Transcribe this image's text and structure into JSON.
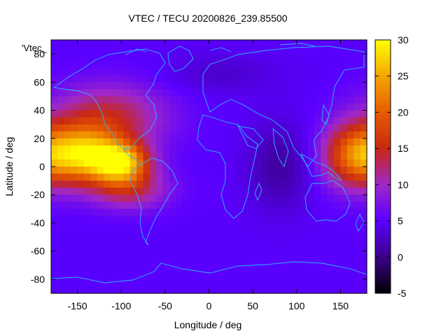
{
  "title": "VTEC / TECU 20200826_239.85500",
  "xlabel": "Longitude / deg",
  "ylabel": "Latitude / deg",
  "series_label": "'Vtec_",
  "colors": {
    "coastline": "#2ab6ff",
    "background": "#ffffff",
    "text": "#000000"
  },
  "chart_data": {
    "type": "heatmap",
    "title": "VTEC / TECU 20200826_239.85500",
    "xlabel": "Longitude / deg",
    "ylabel": "Latitude / deg",
    "xlim": [
      -180,
      180
    ],
    "ylim": [
      -90,
      90
    ],
    "x_ticks": [
      -150,
      -100,
      -50,
      0,
      50,
      100,
      150
    ],
    "y_ticks": [
      -80,
      -60,
      -40,
      -20,
      0,
      20,
      40,
      60,
      80
    ],
    "colorbar": {
      "range": [
        -5,
        30
      ],
      "ticks": [
        -5,
        0,
        5,
        10,
        15,
        20,
        25,
        30
      ],
      "palette": "black-purple-red-orange-yellow"
    },
    "features": [
      {
        "lon": -145,
        "lat": 8,
        "vtec": 20,
        "sx": 30,
        "sy": 14
      },
      {
        "lon": -100,
        "lat": 3,
        "vtec": 20,
        "sx": 22,
        "sy": 10
      },
      {
        "lon": -90,
        "lat": -16,
        "vtec": 8,
        "sx": 30,
        "sy": 10
      },
      {
        "lon": -115,
        "lat": 35,
        "vtec": 9,
        "sx": 45,
        "sy": 16
      },
      {
        "lon": 165,
        "lat": 8,
        "vtec": 14,
        "sx": 25,
        "sy": 16
      },
      {
        "lon": 80,
        "lat": 0,
        "vtec": -4,
        "sx": 25,
        "sy": 22
      },
      {
        "lon": 15,
        "lat": 66,
        "vtec": -2,
        "sx": 45,
        "sy": 10
      }
    ],
    "baseline_vtec": 5
  }
}
